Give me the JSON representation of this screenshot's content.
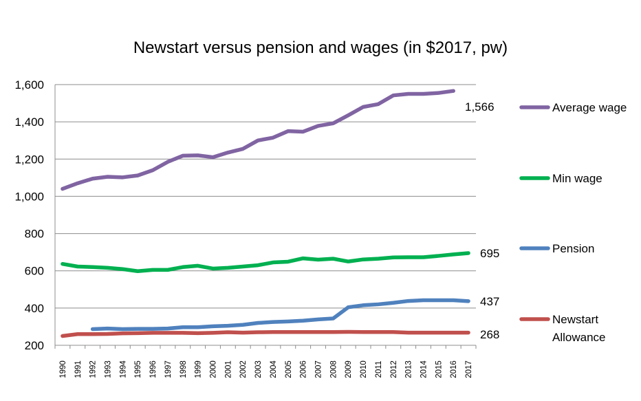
{
  "chart_data": {
    "type": "line",
    "title": "Newstart versus pension and wages (in $2017, pw)",
    "xlabel": "",
    "ylabel": "",
    "ylim": [
      200,
      1600
    ],
    "yticks": [
      200,
      400,
      600,
      800,
      1000,
      1200,
      1400,
      1600
    ],
    "ytick_labels": [
      "200",
      "400",
      "600",
      "800",
      "1,000",
      "1,200",
      "1,400",
      "1,600"
    ],
    "x": [
      "1990",
      "1991",
      "1992",
      "1993",
      "1994",
      "1995",
      "1996",
      "1997",
      "1998",
      "1999",
      "2000",
      "2001",
      "2002",
      "2003",
      "2004",
      "2005",
      "2006",
      "2007",
      "2008",
      "2009",
      "2010",
      "2011",
      "2012",
      "2013",
      "2014",
      "2015",
      "2016",
      "2017"
    ],
    "grid": true,
    "legend_position": "right",
    "series": [
      {
        "name": "Average wage",
        "color": "#8064a2",
        "end_label": "1,566",
        "values": [
          1040,
          1070,
          1095,
          1105,
          1102,
          1112,
          1140,
          1185,
          1218,
          1220,
          1210,
          1235,
          1255,
          1300,
          1315,
          1350,
          1347,
          1378,
          1392,
          1435,
          1480,
          1495,
          1542,
          1550,
          1550,
          1555,
          1566,
          null
        ]
      },
      {
        "name": "Min wage",
        "color": "#00b050",
        "end_label": "695",
        "values": [
          637,
          623,
          620,
          616,
          609,
          598,
          605,
          605,
          620,
          627,
          612,
          616,
          623,
          630,
          645,
          649,
          667,
          660,
          665,
          650,
          661,
          665,
          672,
          673,
          673,
          680,
          688,
          695
        ]
      },
      {
        "name": "Pension",
        "color": "#4f81bd",
        "end_label": "437",
        "values": [
          null,
          null,
          287,
          290,
          287,
          288,
          288,
          290,
          297,
          297,
          302,
          305,
          310,
          320,
          325,
          328,
          332,
          339,
          344,
          404,
          415,
          420,
          428,
          438,
          442,
          442,
          442,
          437
        ]
      },
      {
        "name": "Newstart Allowance",
        "color": "#c0504d",
        "end_label": "268",
        "values": [
          250,
          260,
          260,
          261,
          264,
          265,
          267,
          267,
          267,
          265,
          267,
          270,
          268,
          270,
          271,
          271,
          271,
          271,
          271,
          272,
          271,
          271,
          271,
          268,
          268,
          268,
          268,
          268
        ]
      }
    ]
  }
}
